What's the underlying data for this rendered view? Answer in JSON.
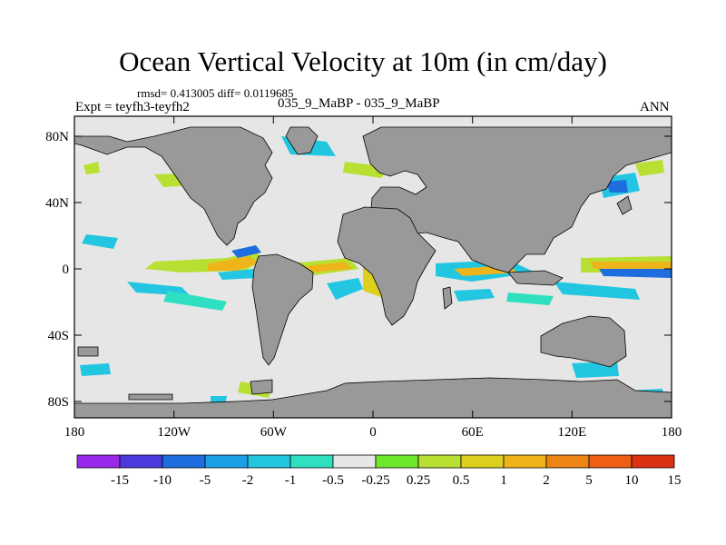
{
  "title": "Ocean Vertical Velocity at 10m (in cm/day)",
  "stats": "rmsd= 0.413005 diff= 0.0119685",
  "experiment": "Expt = teyfh3-teyfh2",
  "case": "035_9_MaBP - 035_9_MaBP",
  "season": "ANN",
  "axes": {
    "y_ticks": [
      "80N",
      "40N",
      "0",
      "40S",
      "80S"
    ],
    "x_ticks": [
      "180",
      "120W",
      "60W",
      "0",
      "60E",
      "120E",
      "180"
    ]
  },
  "legend": {
    "labels": [
      "-15",
      "-10",
      "-5",
      "-2",
      "-1",
      "-0.5",
      "-0.25",
      "0.25",
      "0.5",
      "1",
      "2",
      "5",
      "10",
      "15"
    ],
    "colors": [
      "#9a28ea",
      "#4b3adc",
      "#1f6ee0",
      "#1aa0e6",
      "#22c6e0",
      "#2fe0c0",
      "#e6e6e6",
      "#6ee82a",
      "#b7e032",
      "#dccf1e",
      "#eeb41a",
      "#ee8412",
      "#ee5e14",
      "#dc3214"
    ]
  },
  "colors": {
    "land": "#999999",
    "neutral": "#e6e6e6"
  }
}
